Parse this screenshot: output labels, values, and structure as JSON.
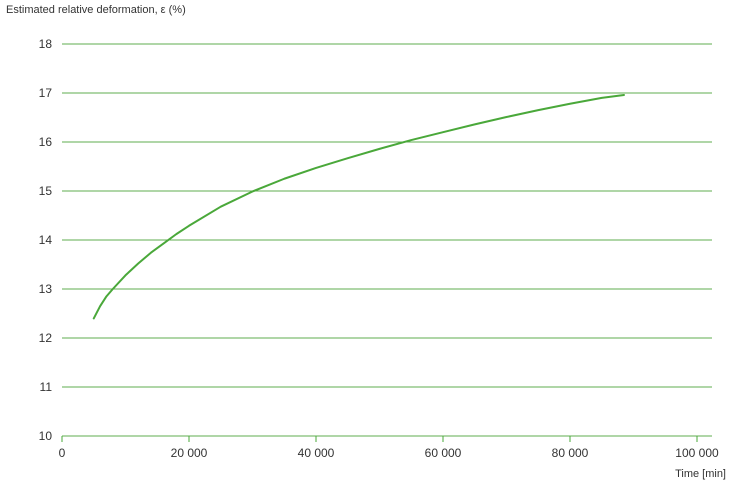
{
  "chart_data": {
    "type": "line",
    "title": "",
    "ylabel": "Estimated relative deformation, ε (%)",
    "xlabel": "Time [min]",
    "xlim": [
      0,
      100000
    ],
    "ylim": [
      10,
      18
    ],
    "x_ticks": [
      0,
      20000,
      40000,
      60000,
      80000,
      100000
    ],
    "x_tick_labels": [
      "0",
      "20 000",
      "40 000",
      "60 000",
      "80 000",
      "100 000"
    ],
    "y_ticks": [
      10,
      11,
      12,
      13,
      14,
      15,
      16,
      17,
      18
    ],
    "y_tick_labels": [
      "10",
      "11",
      "12",
      "13",
      "14",
      "15",
      "16",
      "17",
      "18"
    ],
    "grid": "horizontal",
    "colors": {
      "line": "#4aa83a",
      "grid": "#5fae4f",
      "axis": "#4aa83a",
      "text": "#333333"
    },
    "series": [
      {
        "x": [
          5000,
          6000,
          7000,
          8000,
          10000,
          12000,
          14000,
          16000,
          18000,
          20000,
          25000,
          30000,
          35000,
          40000,
          45000,
          50000,
          55000,
          60000,
          65000,
          70000,
          75000,
          80000,
          85000,
          88500
        ],
        "y": [
          12.4,
          12.65,
          12.85,
          13.0,
          13.28,
          13.52,
          13.74,
          13.93,
          14.12,
          14.29,
          14.68,
          14.99,
          15.25,
          15.47,
          15.67,
          15.86,
          16.04,
          16.2,
          16.36,
          16.51,
          16.65,
          16.78,
          16.9,
          16.96
        ]
      }
    ]
  }
}
